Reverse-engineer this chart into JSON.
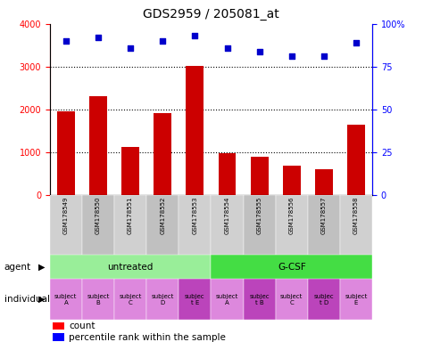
{
  "title": "GDS2959 / 205081_at",
  "samples": [
    "GSM178549",
    "GSM178550",
    "GSM178551",
    "GSM178552",
    "GSM178553",
    "GSM178554",
    "GSM178555",
    "GSM178556",
    "GSM178557",
    "GSM178558"
  ],
  "counts": [
    1960,
    2310,
    1120,
    1920,
    3020,
    970,
    900,
    680,
    610,
    1650
  ],
  "percentile_ranks": [
    90,
    92,
    86,
    90,
    93,
    86,
    84,
    81,
    81,
    89
  ],
  "bar_color": "#cc0000",
  "dot_color": "#0000cc",
  "ylim_left": [
    0,
    4000
  ],
  "ylim_right": [
    0,
    100
  ],
  "yticks_left": [
    0,
    1000,
    2000,
    3000,
    4000
  ],
  "yticks_right": [
    0,
    25,
    50,
    75,
    100
  ],
  "ytick_labels_right": [
    "0",
    "25",
    "50",
    "75",
    "100%"
  ],
  "agent_groups": [
    {
      "label": "untreated",
      "start": 0,
      "end": 5,
      "color": "#99ee99"
    },
    {
      "label": "G-CSF",
      "start": 5,
      "end": 10,
      "color": "#44dd44"
    }
  ],
  "individual_labels": [
    "subject\nA",
    "subject\nB",
    "subject\nC",
    "subject\nD",
    "subjec\nt E",
    "subject\nA",
    "subjec\nt B",
    "subject\nC",
    "subjec\nt D",
    "subject\nE"
  ],
  "individual_colors": [
    "#dd88dd",
    "#dd88dd",
    "#dd88dd",
    "#dd88dd",
    "#bb44bb",
    "#dd88dd",
    "#bb44bb",
    "#dd88dd",
    "#bb44bb",
    "#dd88dd"
  ],
  "sample_colors": [
    "#d0d0d0",
    "#c0c0c0",
    "#d0d0d0",
    "#c0c0c0",
    "#d0d0d0",
    "#d0d0d0",
    "#c0c0c0",
    "#d0d0d0",
    "#c0c0c0",
    "#d0d0d0"
  ],
  "background_color": "#ffffff"
}
